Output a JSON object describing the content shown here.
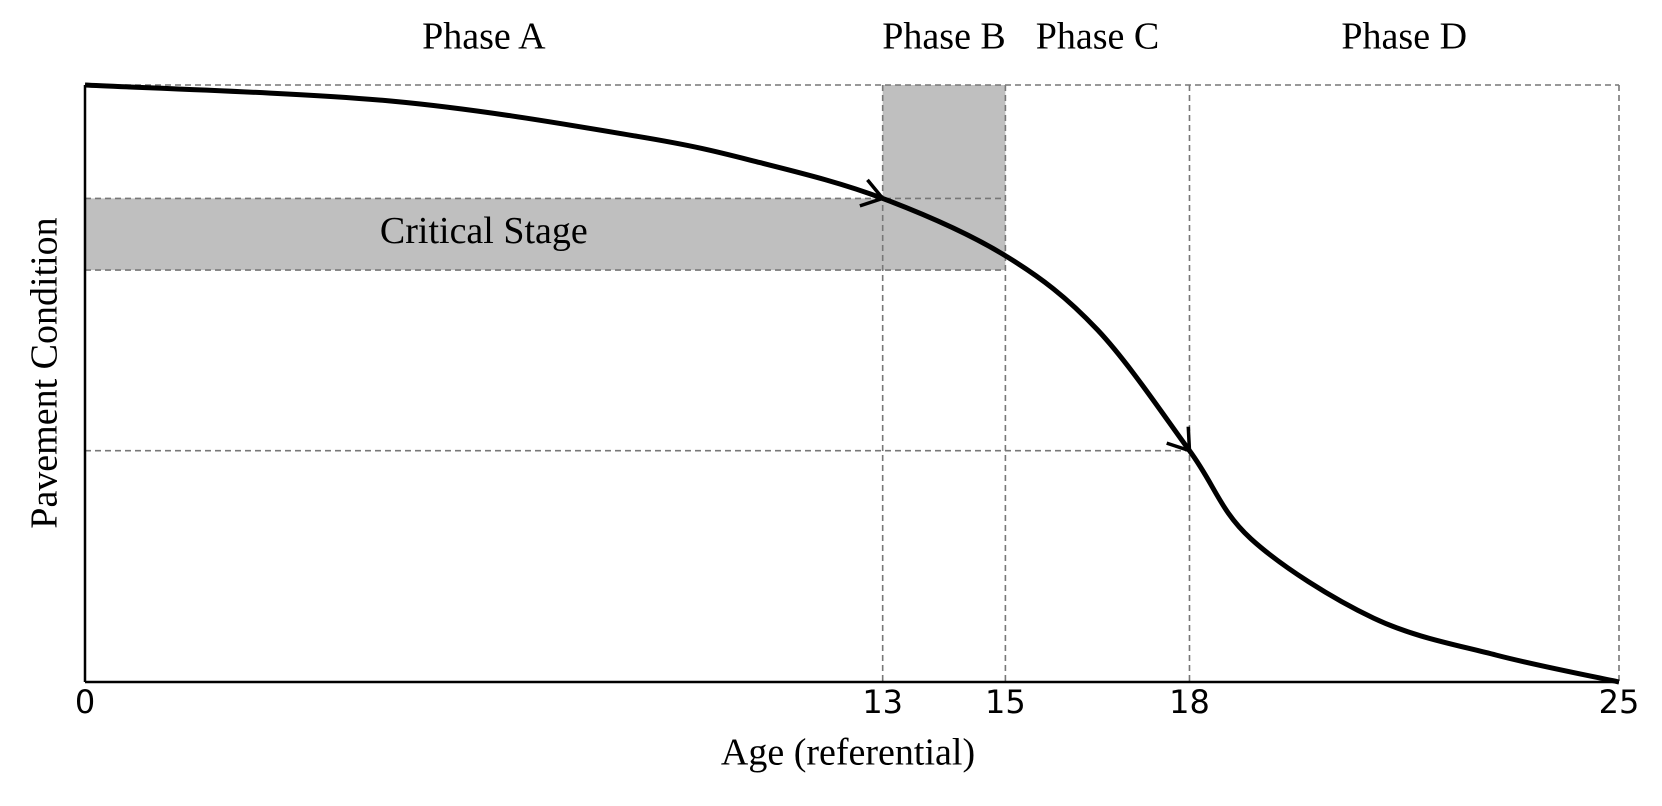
{
  "chart_data": {
    "type": "line",
    "x_label": "Age (referential)",
    "y_label": "Pavement Condition",
    "x": [
      0,
      5,
      9,
      11,
      13,
      15,
      16.5,
      18,
      19,
      21,
      23,
      25
    ],
    "series": [
      {
        "color": "#000000",
        "values": [
          100,
          97.3,
          91.4,
          87,
          81,
          71.4,
          59,
          38.75,
          24,
          10.7,
          4.5,
          0
        ]
      }
    ],
    "xlim": [
      0,
      25
    ],
    "ylim": [
      0,
      100
    ],
    "xticks": [
      0,
      13,
      15,
      18,
      25
    ],
    "phases": [
      {
        "label": "Phase A",
        "xlim": [
          0,
          13
        ]
      },
      {
        "label": "Phase B",
        "xlim": [
          13,
          15
        ]
      },
      {
        "label": "Phase C",
        "xlim": [
          15,
          18
        ]
      },
      {
        "label": "Phase D",
        "xlim": [
          18,
          25
        ]
      }
    ],
    "critical_stage": {
      "label": "Critical Stage",
      "ylim": [
        69,
        81
      ],
      "color": "#bfbfbf"
    }
  }
}
